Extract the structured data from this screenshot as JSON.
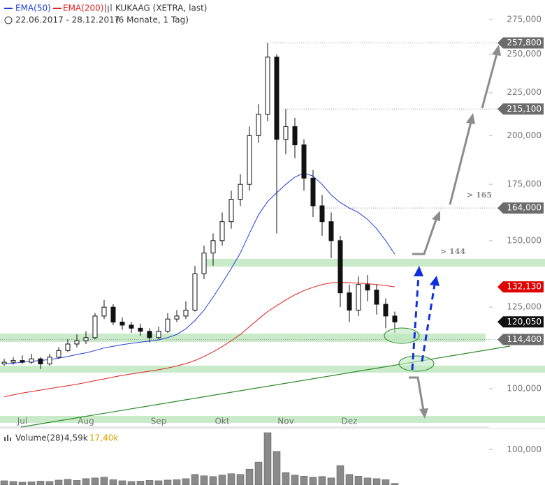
{
  "chart_data": {
    "type": "candlestick",
    "title": "KUKAAG (XETRA, last)",
    "subtitle": "22.06.2017 - 28.12.2017",
    "period": "(6 Monate, 1 Tag)",
    "log_scale": true,
    "categories": [
      null,
      null,
      "Jul",
      null,
      null,
      null,
      null,
      null,
      null,
      "Aug",
      null,
      null,
      null,
      null,
      null,
      null,
      null,
      "Sep",
      null,
      null,
      null,
      null,
      null,
      null,
      "Okt",
      null,
      null,
      null,
      null,
      null,
      null,
      "Nov",
      null,
      null,
      null,
      null,
      null,
      null,
      "Dez",
      null,
      null,
      null,
      null,
      null
    ],
    "open": [
      107000,
      107500,
      108000,
      107500,
      108500,
      107000,
      109000,
      111000,
      113000,
      114000,
      115000,
      122000,
      125000,
      120000,
      119000,
      118000,
      117000,
      115000,
      117000,
      121000,
      122000,
      124000,
      137000,
      145000,
      150000,
      158000,
      168000,
      175000,
      200000,
      212000,
      248000,
      198000,
      205000,
      195000,
      178000,
      165000,
      158000,
      150000,
      130000,
      124000,
      133000,
      131000,
      126000,
      122000
    ],
    "high": [
      108500,
      109000,
      109500,
      110000,
      109000,
      110000,
      112000,
      114500,
      116000,
      117000,
      123000,
      127500,
      126000,
      121500,
      120000,
      119500,
      118000,
      118500,
      123000,
      124000,
      127000,
      140000,
      148000,
      153000,
      162000,
      172000,
      180000,
      205000,
      218000,
      257800,
      250000,
      215100,
      210000,
      198000,
      182000,
      170000,
      162000,
      152000,
      133000,
      136000,
      136500,
      133000,
      128000,
      123500
    ],
    "low": [
      106500,
      106800,
      107000,
      107000,
      105500,
      106500,
      108500,
      110500,
      112000,
      113000,
      114500,
      121000,
      119000,
      117500,
      116500,
      115500,
      113500,
      114500,
      116500,
      120000,
      121000,
      123500,
      135000,
      140000,
      148000,
      155000,
      165000,
      172000,
      196000,
      208000,
      153000,
      190000,
      188000,
      172000,
      160000,
      152000,
      143000,
      125000,
      120000,
      122000,
      127000,
      122500,
      118000,
      116500
    ],
    "close": [
      107500,
      108000,
      107500,
      108500,
      107000,
      109000,
      111000,
      113000,
      114000,
      115000,
      122000,
      125000,
      120000,
      119000,
      118000,
      117000,
      115000,
      117000,
      121000,
      122000,
      124000,
      137000,
      145000,
      150000,
      158000,
      168000,
      175000,
      200000,
      212000,
      248000,
      198000,
      205000,
      195000,
      178000,
      165000,
      158000,
      150000,
      130000,
      124000,
      133000,
      131000,
      126000,
      122000,
      120050
    ],
    "up_color": "#ffffff",
    "down_color": "#111111",
    "series": [
      {
        "name": "EMA(50)",
        "color": "#1f3fd6",
        "values": [
          107000,
          107200,
          107500,
          107800,
          108000,
          108300,
          108700,
          109200,
          109800,
          110300,
          111000,
          111800,
          112300,
          112800,
          113200,
          113600,
          113900,
          114300,
          115000,
          116000,
          117800,
          120500,
          124000,
          128500,
          133500,
          139000,
          145000,
          153000,
          161000,
          167000,
          171000,
          175000,
          178500,
          180500,
          179000,
          175000,
          170000,
          166500,
          164000,
          162000,
          159000,
          155000,
          150000,
          144500
        ]
      },
      {
        "name": "EMA(200)",
        "color": "#e02020",
        "values": [
          97800,
          98300,
          98800,
          99200,
          99600,
          100000,
          100400,
          100800,
          101200,
          101700,
          102200,
          102700,
          103200,
          103700,
          104100,
          104500,
          104900,
          105300,
          105800,
          106400,
          107100,
          108000,
          109200,
          110600,
          112200,
          114000,
          116000,
          118500,
          121000,
          123500,
          125500,
          127500,
          129300,
          130800,
          132000,
          133000,
          133600,
          133800,
          133700,
          133500,
          133300,
          133000,
          132600,
          132130
        ]
      }
    ],
    "ylim": [
      90000,
      290000
    ],
    "yticks": [
      {
        "value": 100000,
        "label": "100,000"
      },
      {
        "value": 125000,
        "label": "125,000"
      },
      {
        "value": 150000,
        "label": "150,000"
      },
      {
        "value": 175000,
        "label": "175,000"
      },
      {
        "value": 200000,
        "label": "200,000"
      },
      {
        "value": 225000,
        "label": "225,000"
      },
      {
        "value": 250000,
        "label": "250,000"
      },
      {
        "value": 275000,
        "label": "275,000"
      }
    ],
    "price_labels": [
      {
        "value": 257800,
        "label": "257,800",
        "color": "#6b6b6b"
      },
      {
        "value": 215100,
        "label": "215,100",
        "color": "#6b6b6b"
      },
      {
        "value": 164000,
        "label": "164,000",
        "color": "#6b6b6b"
      },
      {
        "value": 132130,
        "label": "132,130",
        "color": "#e00000"
      },
      {
        "value": 120050,
        "label": "120,050",
        "color": "#111111"
      },
      {
        "value": 114400,
        "label": "114,400",
        "color": "#6b6b6b"
      }
    ],
    "annotations": [
      "> 165",
      "> 144"
    ],
    "volume": {
      "title": "Volume(28)",
      "last": "4,59k",
      "average": "17,40k",
      "color": "#8a8a8a",
      "values": [
        12000,
        10000,
        8000,
        9000,
        11000,
        10000,
        14000,
        16000,
        13000,
        18000,
        20000,
        22000,
        15000,
        12000,
        10000,
        11000,
        13000,
        12000,
        14000,
        15000,
        18000,
        30000,
        26000,
        24000,
        28000,
        32000,
        30000,
        45000,
        65000,
        148000,
        95000,
        35000,
        28000,
        25000,
        22000,
        24000,
        20000,
        55000,
        30000,
        25000,
        20000,
        18000,
        15000,
        4590
      ],
      "ylim": [
        0,
        150000
      ],
      "yticks": [
        {
          "value": 100000,
          "label": "100,000"
        }
      ]
    }
  }
}
